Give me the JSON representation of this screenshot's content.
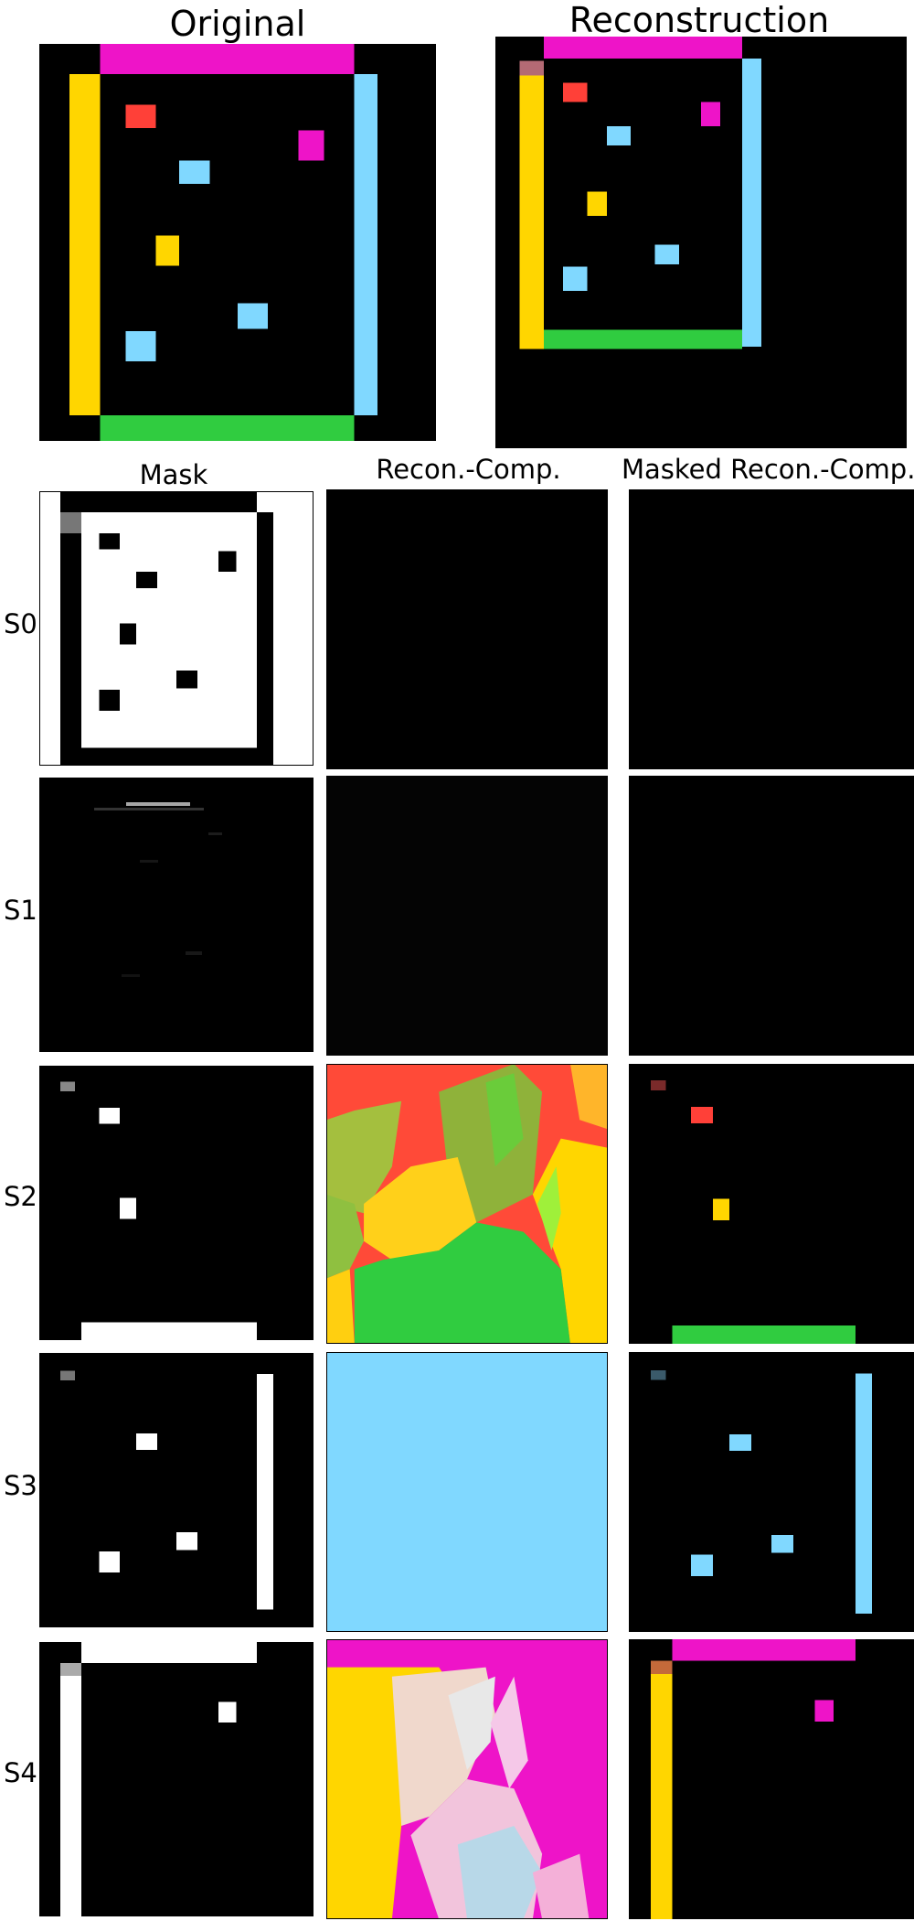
{
  "titles": {
    "original": "Original",
    "reconstruction": "Reconstruction"
  },
  "column_headers": {
    "mask": "Mask",
    "recon_comp": "Recon.-Comp.",
    "masked_recon_comp": "Masked Recon.-Comp."
  },
  "row_labels": [
    "S0",
    "S1",
    "S2",
    "S3",
    "S4"
  ],
  "colors": {
    "background": "#000000",
    "magenta": "#ee14c8",
    "yellow": "#ffd600",
    "light_blue": "#80d8ff",
    "green": "#30cc40",
    "red": "#ff4038",
    "mask_white": "#ffffff"
  },
  "scene_objects": [
    {
      "name": "top-bar",
      "color": "magenta"
    },
    {
      "name": "bottom-bar",
      "color": "green"
    },
    {
      "name": "left-bar",
      "color": "yellow"
    },
    {
      "name": "right-bar",
      "color": "light_blue"
    },
    {
      "name": "red-square",
      "color": "red"
    },
    {
      "name": "magenta-square",
      "color": "magenta"
    },
    {
      "name": "blue-square-1",
      "color": "light_blue"
    },
    {
      "name": "yellow-square",
      "color": "yellow"
    },
    {
      "name": "blue-square-2",
      "color": "light_blue"
    },
    {
      "name": "blue-square-3",
      "color": "light_blue"
    }
  ],
  "slot_assignments": {
    "S0": "background",
    "S1": "empty",
    "S2": [
      "red-square",
      "yellow-square",
      "bottom-bar"
    ],
    "S3": [
      "blue-square-1",
      "blue-square-2",
      "blue-square-3",
      "right-bar"
    ],
    "S4": [
      "top-bar",
      "left-bar",
      "magenta-square"
    ]
  }
}
